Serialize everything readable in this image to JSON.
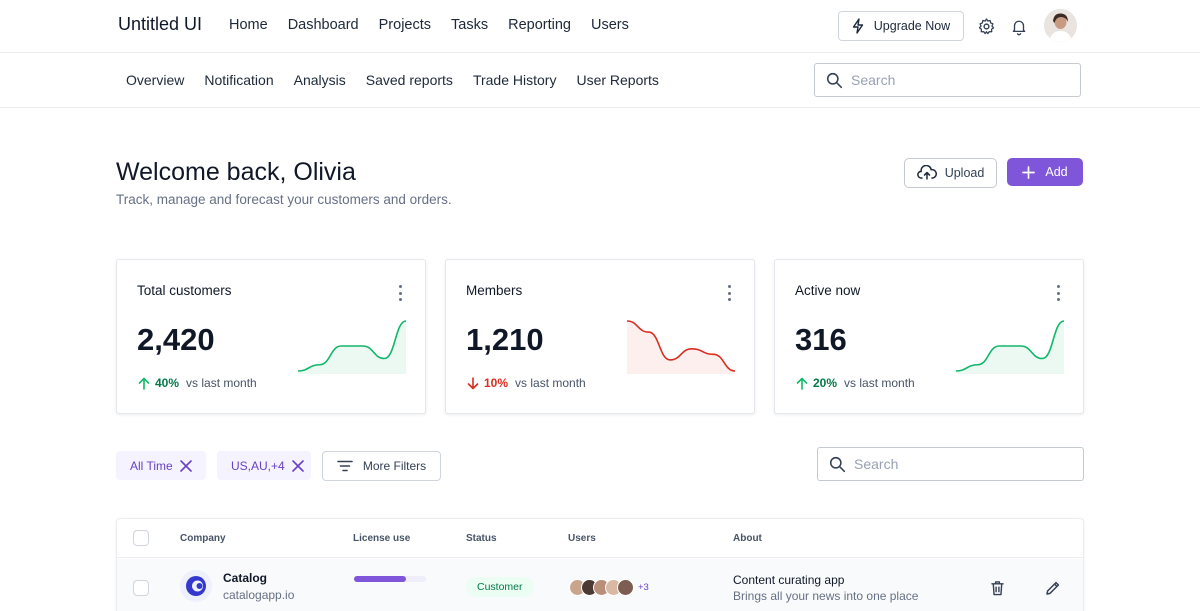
{
  "app": {
    "brand": "Untitled UI"
  },
  "nav": {
    "items": [
      "Home",
      "Dashboard",
      "Projects",
      "Tasks",
      "Reporting",
      "Users"
    ]
  },
  "header_actions": {
    "upgrade_label": "Upgrade Now",
    "upgrade_icon": "lightning-icon",
    "settings_icon": "gear-icon",
    "notifications_icon": "bell-icon"
  },
  "subnav": {
    "items": [
      "Overview",
      "Notification",
      "Analysis",
      "Saved reports",
      "Trade History",
      "User Reports"
    ],
    "search_placeholder": "Search"
  },
  "page": {
    "title": "Welcome back, Olivia",
    "subtitle": "Track, manage and forecast your customers and orders.",
    "upload_label": "Upload",
    "add_label": "Add"
  },
  "colors": {
    "accent": "#7f56d9",
    "positive": "#12b76a",
    "negative": "#d92d20"
  },
  "stats": [
    {
      "title": "Total customers",
      "value": "2,420",
      "change": "40%",
      "direction": "up",
      "vs": "vs last month",
      "trend": [
        1,
        2,
        5,
        5,
        3,
        9
      ]
    },
    {
      "title": "Members",
      "value": "1,210",
      "change": "10%",
      "direction": "down",
      "vs": "vs last month",
      "trend": [
        10,
        8,
        3,
        5,
        4,
        1
      ]
    },
    {
      "title": "Active now",
      "value": "316",
      "change": "20%",
      "direction": "up",
      "vs": "vs last month",
      "trend": [
        1,
        2,
        5,
        5,
        3,
        9
      ]
    }
  ],
  "filters": {
    "chips": [
      "All Time",
      "US,AU,+4"
    ],
    "more_filters_label": "More Filters",
    "search_placeholder": "Search"
  },
  "table": {
    "headers": {
      "company": "Company",
      "license": "License use",
      "status": "Status",
      "users": "Users",
      "about": "About"
    },
    "rows": [
      {
        "company_name": "Catalog",
        "company_url": "catalogapp.io",
        "license_use": 0.72,
        "status": "Customer",
        "users_more": "+3",
        "about_title": "Content curating app",
        "about_desc": "Brings all your news into one place"
      }
    ]
  }
}
